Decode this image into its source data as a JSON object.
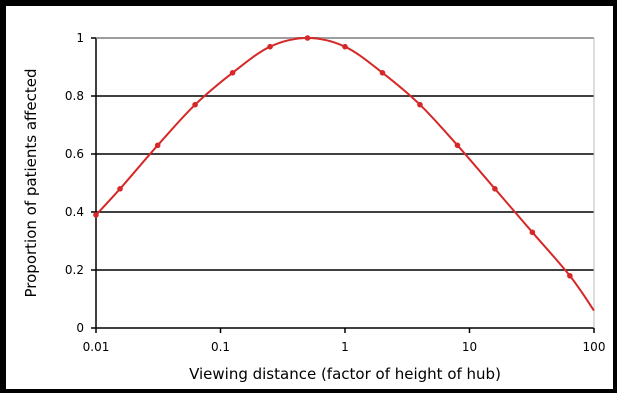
{
  "chart_data": {
    "type": "line",
    "xscale": "log",
    "xlabel": "Viewing distance (factor of height of hub)",
    "ylabel": "Proportion of patients affected",
    "xlim": [
      0.01,
      100
    ],
    "ylim": [
      0,
      1
    ],
    "x_ticks": [
      {
        "value": 0.01,
        "label": "0.01"
      },
      {
        "value": 0.1,
        "label": "0.1"
      },
      {
        "value": 1,
        "label": "1"
      },
      {
        "value": 10,
        "label": "10"
      },
      {
        "value": 100,
        "label": "100"
      }
    ],
    "y_ticks": [
      {
        "value": 0,
        "label": "0"
      },
      {
        "value": 0.2,
        "label": "0.2"
      },
      {
        "value": 0.4,
        "label": "0.4"
      },
      {
        "value": 0.6,
        "label": "0.6"
      },
      {
        "value": 0.8,
        "label": "0.8"
      },
      {
        "value": 1,
        "label": "1"
      }
    ],
    "grid": "horizontal",
    "series": [
      {
        "color": "#d62828",
        "x": [
          0.01,
          0.0156,
          0.0313,
          0.0625,
          0.125,
          0.25,
          0.5,
          1,
          2,
          4,
          8,
          16,
          32,
          64,
          100
        ],
        "y": [
          0.39,
          0.48,
          0.63,
          0.77,
          0.88,
          0.97,
          1.0,
          0.97,
          0.88,
          0.77,
          0.63,
          0.48,
          0.33,
          0.18,
          0.06
        ]
      }
    ]
  }
}
